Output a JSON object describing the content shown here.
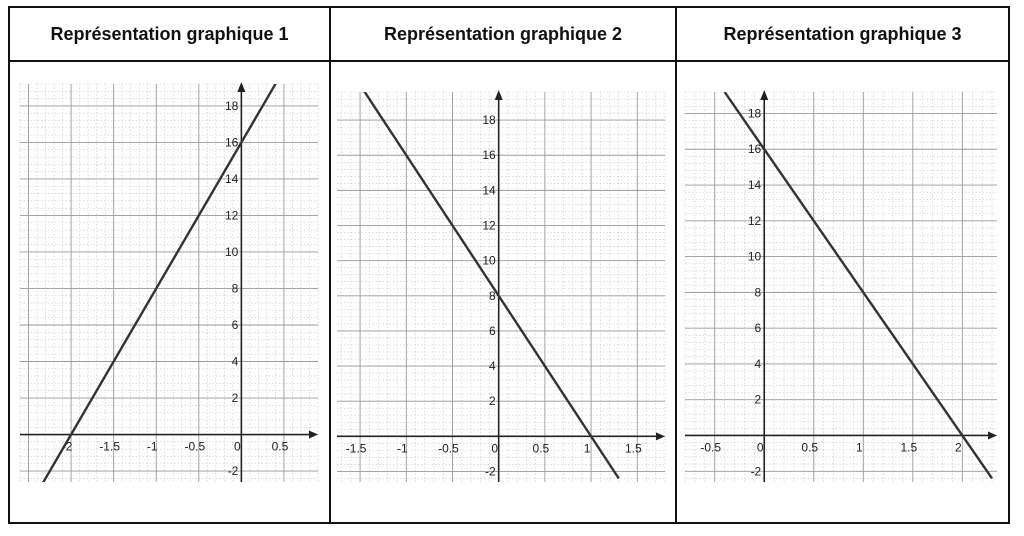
{
  "chart_data": [
    {
      "type": "line",
      "title": "Représentation graphique 1",
      "x_ticks": [
        "-2",
        "-1.5",
        "-1",
        "-0.5",
        "0",
        "0.5"
      ],
      "y_ticks": [
        "-2",
        "2",
        "4",
        "6",
        "8",
        "10",
        "12",
        "14",
        "16",
        "18"
      ],
      "xlim": [
        -2.6,
        0.9
      ],
      "ylim": [
        -2.6,
        19.2
      ],
      "grid": true,
      "series": [
        {
          "slope": 8,
          "intercept": 16,
          "x": [
            -2.65,
            0.45
          ],
          "y": [
            -5.2,
            19.6
          ]
        }
      ]
    },
    {
      "type": "line",
      "title": "Représentation graphique 2",
      "x_ticks": [
        "-1.5",
        "-1",
        "-0.5",
        "0",
        "0.5",
        "1",
        "1.5"
      ],
      "y_ticks": [
        "-2",
        "2",
        "4",
        "6",
        "8",
        "10",
        "12",
        "14",
        "16",
        "18"
      ],
      "xlim": [
        -1.75,
        1.8
      ],
      "ylim": [
        -2.6,
        19.6
      ],
      "grid": true,
      "series": [
        {
          "slope": -8,
          "intercept": 8,
          "x": [
            -1.5,
            1.3
          ],
          "y": [
            20,
            -2.4
          ]
        }
      ]
    },
    {
      "type": "line",
      "title": "Représentation graphique 3",
      "x_ticks": [
        "-0.5",
        "0",
        "0.5",
        "1",
        "1.5",
        "2"
      ],
      "y_ticks": [
        "-2",
        "2",
        "4",
        "6",
        "8",
        "10",
        "12",
        "14",
        "16",
        "18"
      ],
      "xlim": [
        -0.8,
        2.35
      ],
      "ylim": [
        -2.6,
        19.2
      ],
      "grid": true,
      "series": [
        {
          "slope": -8,
          "intercept": 16,
          "x": [
            -0.4,
            2.3
          ],
          "y": [
            19.2,
            -2.4
          ]
        }
      ]
    }
  ]
}
